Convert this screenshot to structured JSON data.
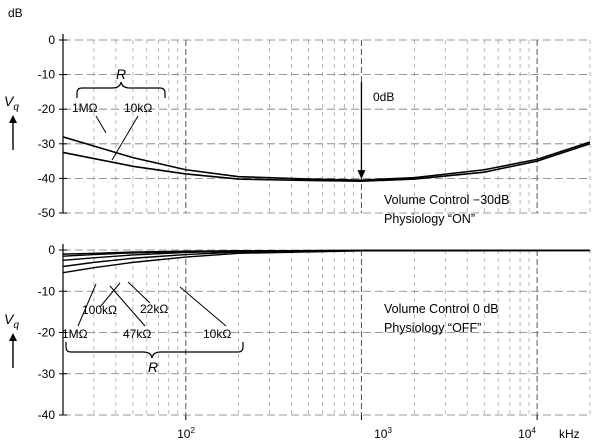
{
  "chart_data": [
    {
      "type": "line",
      "x_scale": "log",
      "xlim": [
        20,
        20000
      ],
      "ylim": [
        -50,
        0
      ],
      "ylabel": "V",
      "ylabel_sub": "q",
      "y_unit": "dB",
      "y_ticks": [
        0,
        -10,
        -20,
        -30,
        -40,
        -50
      ],
      "y_tick_labels": [
        "0",
        "-10",
        "-20",
        "-30",
        "-40",
        "-50"
      ],
      "grid": true,
      "caption": [
        "Volume Control −30dB",
        "Physiology “ON”"
      ],
      "bracket_label": "R",
      "annotations": [
        {
          "text": "0dB",
          "x": 1000
        }
      ],
      "series": [
        {
          "name": "1MΩ",
          "x": [
            20,
            50,
            100,
            200,
            500,
            1000,
            2000,
            5000,
            10000,
            20000
          ],
          "y": [
            -28,
            -34,
            -37.5,
            -39.5,
            -40.2,
            -40.5,
            -39.8,
            -37.5,
            -34.5,
            -29.5
          ]
        },
        {
          "name": "10kΩ",
          "x": [
            20,
            50,
            100,
            200,
            500,
            1000,
            2000,
            5000,
            10000,
            20000
          ],
          "y": [
            -32.5,
            -36.5,
            -38.7,
            -40.2,
            -40.6,
            -40.8,
            -40.2,
            -38.2,
            -35,
            -30
          ]
        }
      ]
    },
    {
      "type": "line",
      "x_scale": "log",
      "xlim": [
        20,
        20000
      ],
      "ylim": [
        -40,
        0
      ],
      "xlabel": "kHz",
      "ylabel": "V",
      "ylabel_sub": "q",
      "y_ticks": [
        0,
        -10,
        -20,
        -30,
        -40
      ],
      "y_tick_labels": [
        "0",
        "-10",
        "-20",
        "-30",
        "-40"
      ],
      "x_ticks": [
        100,
        1000,
        10000
      ],
      "x_tick_labels": [
        {
          "base": "10",
          "exp": "2"
        },
        {
          "base": "10",
          "exp": "3"
        },
        {
          "base": "10",
          "exp": "4"
        }
      ],
      "grid": true,
      "caption": [
        "Volume Control 0 dB",
        "Physiology “OFF”"
      ],
      "bracket_label": "R",
      "series": [
        {
          "name": "100kΩ",
          "x": [
            20,
            30,
            50,
            100,
            200,
            1000,
            20000
          ],
          "y": [
            -1,
            -0.8,
            -0.5,
            -0.3,
            -0.2,
            -0.1,
            -0.1
          ]
        },
        {
          "name": "22kΩ",
          "x": [
            20,
            30,
            50,
            100,
            200,
            1000,
            20000
          ],
          "y": [
            -1.5,
            -1.1,
            -0.7,
            -0.4,
            -0.2,
            -0.1,
            -0.1
          ]
        },
        {
          "name": "1MΩ",
          "x": [
            20,
            30,
            50,
            100,
            200,
            1000,
            20000
          ],
          "y": [
            -2.5,
            -1.9,
            -1.2,
            -0.6,
            -0.3,
            -0.1,
            -0.1
          ]
        },
        {
          "name": "47kΩ",
          "x": [
            20,
            30,
            50,
            100,
            200,
            1000,
            20000
          ],
          "y": [
            -4,
            -3,
            -2,
            -1.1,
            -0.5,
            -0.2,
            -0.1
          ]
        },
        {
          "name": "10kΩ",
          "x": [
            20,
            30,
            50,
            100,
            200,
            1000,
            20000
          ],
          "y": [
            -5.5,
            -4.3,
            -3,
            -1.7,
            -0.8,
            -0.2,
            -0.1
          ]
        }
      ]
    }
  ]
}
